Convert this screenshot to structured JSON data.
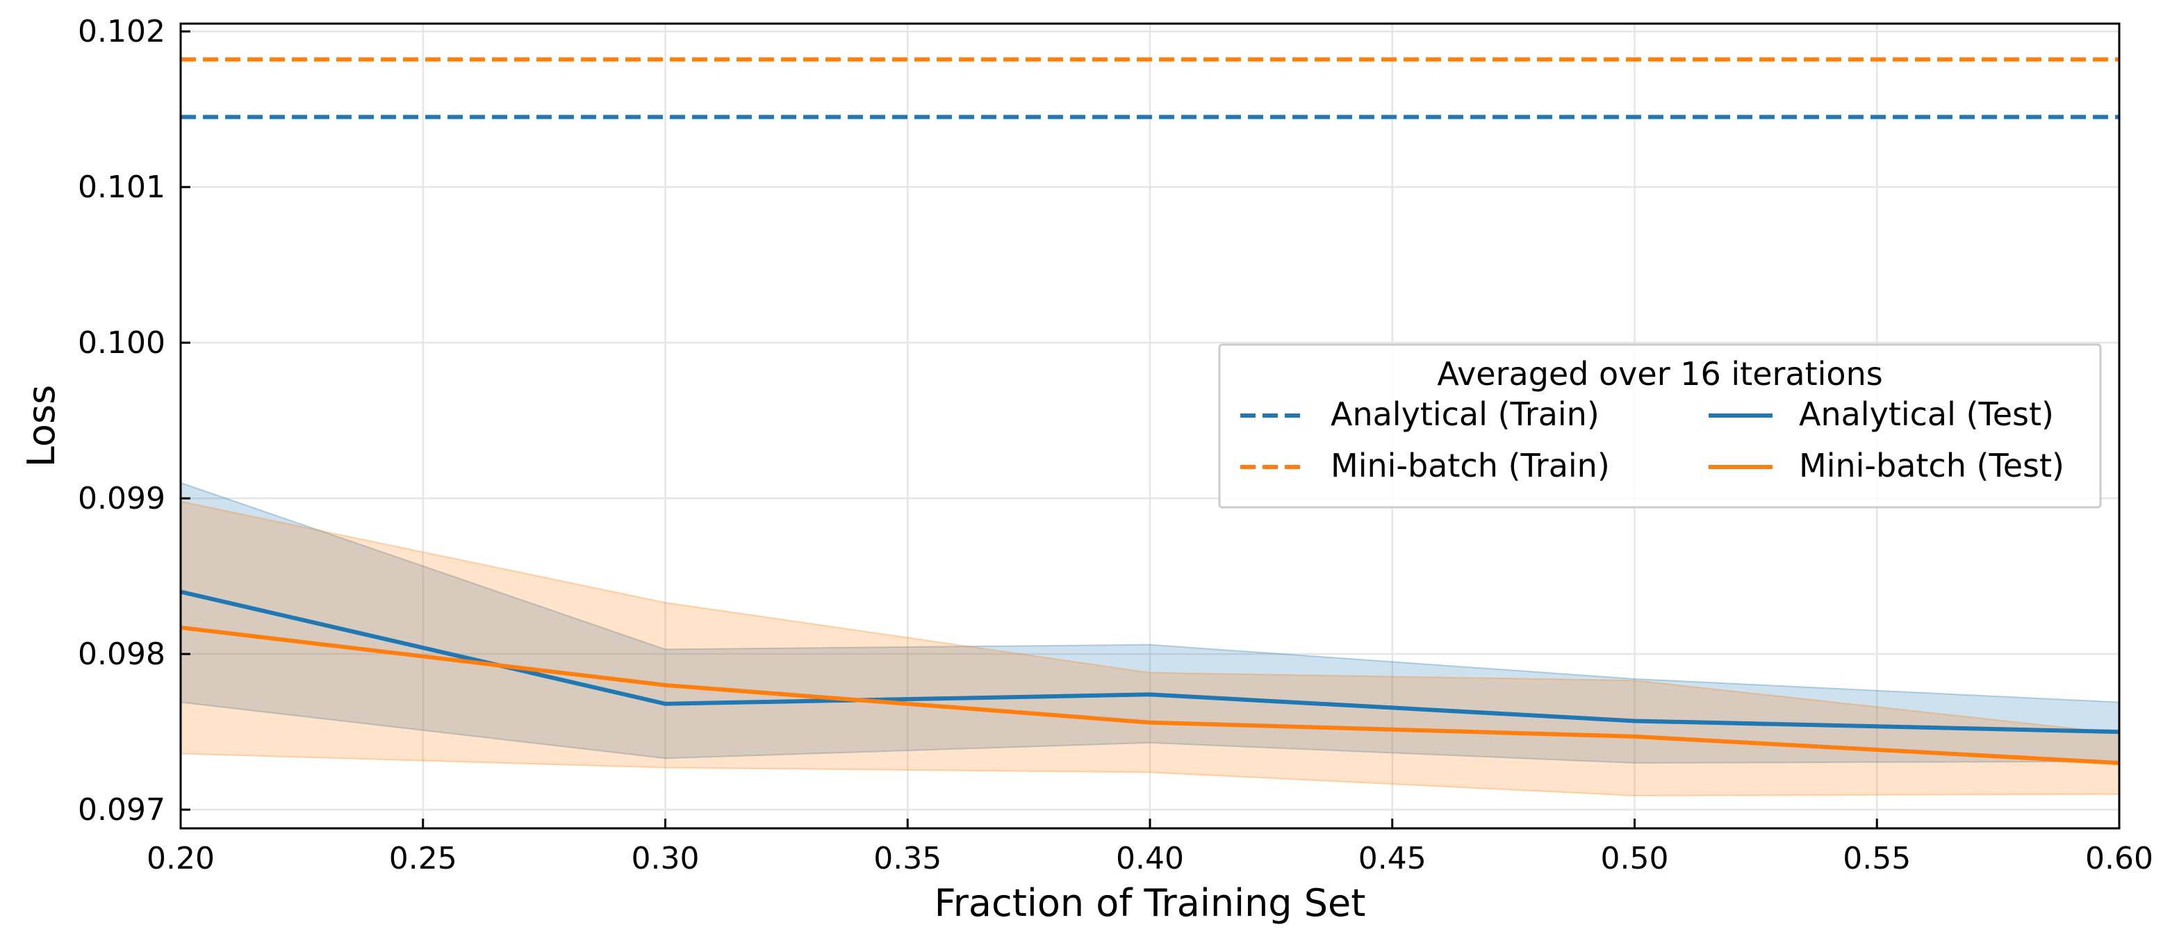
{
  "chart_data": {
    "type": "line",
    "title": "",
    "xlabel": "Fraction of Training Set",
    "ylabel": "Loss",
    "xlim": [
      0.2,
      0.6
    ],
    "ylim": [
      0.09688,
      0.10205
    ],
    "x_ticks": [
      "0.20",
      "0.25",
      "0.30",
      "0.35",
      "0.40",
      "0.45",
      "0.50",
      "0.55",
      "0.60"
    ],
    "y_ticks": [
      "0.097",
      "0.098",
      "0.099",
      "0.100",
      "0.101",
      "0.102"
    ],
    "grid": true,
    "legend": {
      "title": "Averaged over 16 iterations",
      "placement": "center-right",
      "columns": 2
    },
    "x": [
      0.2,
      0.3,
      0.4,
      0.5,
      0.6
    ],
    "series": [
      {
        "name": "Analytical (Train)",
        "style": "dashed",
        "color": "#1f77b4",
        "values": [
          0.10145,
          0.10145,
          0.10145,
          0.10145,
          0.10145
        ]
      },
      {
        "name": "Mini-batch (Train)",
        "style": "dashed",
        "color": "#ff7f0e",
        "values": [
          0.10182,
          0.10182,
          0.10182,
          0.10182,
          0.10182
        ]
      },
      {
        "name": "Analytical (Test)",
        "style": "solid",
        "color": "#1f77b4",
        "values": [
          0.0984,
          0.09768,
          0.09774,
          0.09757,
          0.0975
        ],
        "band_upper": [
          0.0991,
          0.09803,
          0.09806,
          0.09784,
          0.09769
        ],
        "band_lower": [
          0.09769,
          0.09733,
          0.09743,
          0.0973,
          0.09731
        ]
      },
      {
        "name": "Mini-batch (Test)",
        "style": "solid",
        "color": "#ff7f0e",
        "values": [
          0.09817,
          0.0978,
          0.09756,
          0.09747,
          0.0973
        ],
        "band_upper": [
          0.09898,
          0.09833,
          0.09788,
          0.09783,
          0.09749
        ],
        "band_lower": [
          0.09736,
          0.09727,
          0.09724,
          0.09709,
          0.0971
        ]
      }
    ]
  }
}
